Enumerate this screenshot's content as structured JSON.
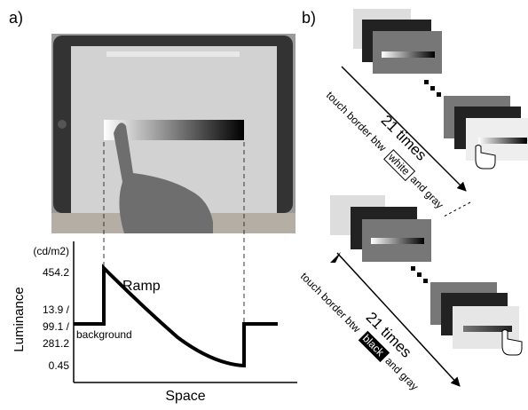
{
  "panel_a": {
    "label": "a)",
    "unit": "(cd/m2)",
    "y_labels": [
      "454.2",
      "13.9 /",
      "99.1 /",
      "281.2",
      "0.45"
    ],
    "y_axis_title": "Luminance",
    "x_axis_title": "Space",
    "curve_label": "Ramp",
    "background_label": "background"
  },
  "panel_b": {
    "label": "b)",
    "top": {
      "count": "21 times",
      "instruction": "touch border btw",
      "highlight": "white",
      "suffix": "and gray"
    },
    "bottom": {
      "count": "21 times",
      "instruction": "touch border btw",
      "highlight": "black",
      "suffix": "and gray"
    }
  }
}
